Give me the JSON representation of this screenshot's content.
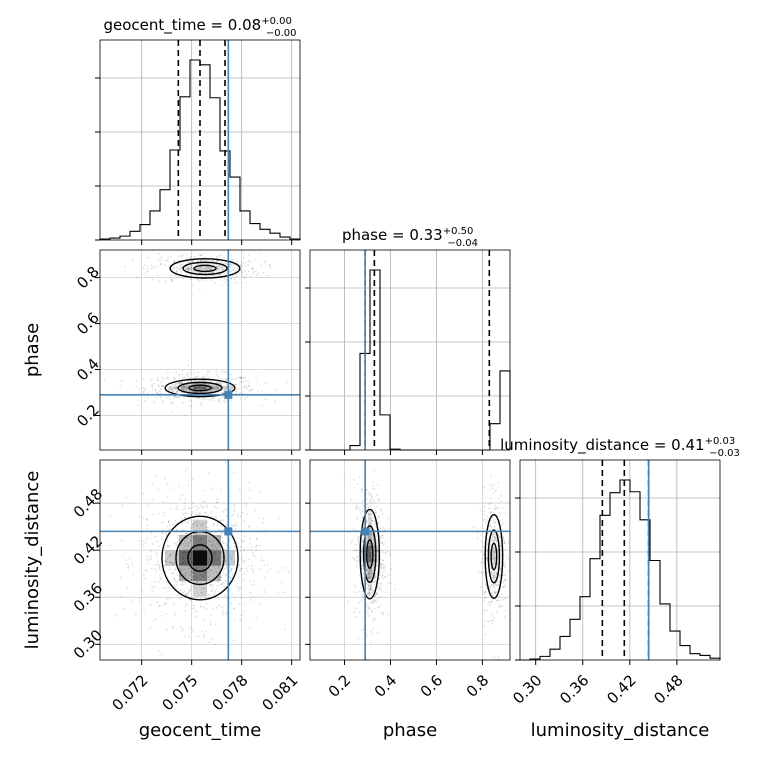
{
  "chart_data": {
    "type": "corner",
    "parameters": [
      "geocent_time",
      "phase",
      "luminosity_distance"
    ],
    "truth_color": "#4682b4",
    "truths": {
      "geocent_time": 0.0772,
      "phase": 0.29,
      "luminosity_distance": 0.444
    },
    "diagonal": [
      {
        "parameter": "geocent_time",
        "title": {
          "prefix": "geocent_time = 0.08",
          "sup": "+0.00",
          "sub": "−0.00"
        },
        "range": [
          0.0695,
          0.0815
        ],
        "ticks": [
          0.072,
          0.075,
          0.078,
          0.081
        ],
        "tick_labels": [
          "0.072",
          "0.075",
          "0.078",
          "0.081"
        ],
        "quantiles": [
          0.0742,
          0.0755,
          0.077
        ],
        "bins": [
          0.0695,
          0.0701,
          0.0707,
          0.0713,
          0.0719,
          0.0725,
          0.0731,
          0.0737,
          0.0743,
          0.0749,
          0.0755,
          0.0761,
          0.0767,
          0.0773,
          0.0779,
          0.0785,
          0.0791,
          0.0797,
          0.0803,
          0.0809,
          0.0815
        ],
        "counts": [
          1,
          2,
          4,
          9,
          16,
          30,
          52,
          93,
          148,
          186,
          181,
          147,
          92,
          65,
          30,
          17,
          11,
          7,
          3,
          1
        ]
      },
      {
        "parameter": "phase",
        "title": {
          "prefix": "phase = 0.33",
          "sup": "+0.50",
          "sub": "−0.04"
        },
        "range": [
          0.05,
          0.92
        ],
        "ticks": [
          0.2,
          0.4,
          0.6,
          0.8
        ],
        "tick_labels": [
          "0.2",
          "0.4",
          "0.6",
          "0.8"
        ],
        "quantiles": [
          0.29,
          0.33,
          0.83
        ],
        "bins": [
          0.05,
          0.0935,
          0.137,
          0.1805,
          0.224,
          0.2675,
          0.311,
          0.3545,
          0.398,
          0.4415,
          0.485,
          0.5285,
          0.572,
          0.6155,
          0.659,
          0.7025,
          0.746,
          0.7895,
          0.833,
          0.8765,
          0.92
        ],
        "counts": [
          0,
          0,
          0,
          0,
          5,
          110,
          205,
          40,
          1,
          0,
          0,
          0,
          0,
          0,
          0,
          0,
          0,
          0,
          30,
          90
        ]
      },
      {
        "parameter": "luminosity_distance",
        "title": {
          "prefix": "luminosity_distance = 0.41",
          "sup": "+0.03",
          "sub": "−0.03"
        },
        "range": [
          0.28,
          0.535
        ],
        "ticks": [
          0.3,
          0.36,
          0.42,
          0.48
        ],
        "tick_labels": [
          "0.30",
          "0.36",
          "0.42",
          "0.48"
        ],
        "quantiles": [
          0.385,
          0.413,
          0.444
        ],
        "bins": [
          0.28,
          0.29275,
          0.3055,
          0.31825,
          0.331,
          0.34375,
          0.3565,
          0.36925,
          0.382,
          0.39475,
          0.4075,
          0.42025,
          0.433,
          0.44575,
          0.4585,
          0.47125,
          0.484,
          0.49675,
          0.5095,
          0.52225,
          0.535
        ],
        "counts": [
          0,
          1,
          4,
          12,
          26,
          45,
          70,
          112,
          160,
          185,
          199,
          186,
          155,
          110,
          62,
          32,
          16,
          7,
          5,
          2
        ]
      }
    ],
    "off_diagonal": [
      {
        "x": "geocent_time",
        "y": "phase",
        "blobs": [
          {
            "cx": 0.0755,
            "cy": 0.32,
            "sx": 0.0011,
            "sy": 0.02,
            "w": 0.6
          },
          {
            "cx": 0.0758,
            "cy": 0.84,
            "sx": 0.0011,
            "sy": 0.022,
            "w": 0.4
          }
        ]
      },
      {
        "x": "geocent_time",
        "y": "luminosity_distance",
        "blobs": [
          {
            "cx": 0.0755,
            "cy": 0.41,
            "sx": 0.0012,
            "sy": 0.028,
            "w": 1.0
          }
        ]
      },
      {
        "x": "phase",
        "y": "luminosity_distance",
        "blobs": [
          {
            "cx": 0.31,
            "cy": 0.415,
            "sx": 0.022,
            "sy": 0.03,
            "w": 0.62
          },
          {
            "cx": 0.85,
            "cy": 0.412,
            "sx": 0.02,
            "sy": 0.028,
            "w": 0.38
          }
        ]
      }
    ],
    "axis_labels": {
      "x": [
        "geocent_time",
        "phase",
        "luminosity_distance"
      ],
      "y": [
        "phase",
        "luminosity_distance"
      ]
    },
    "y_ticks": {
      "phase": {
        "values": [
          0.2,
          0.4,
          0.6,
          0.8
        ],
        "labels": [
          "0.2",
          "0.4",
          "0.6",
          "0.8"
        ],
        "range": [
          0.05,
          0.92
        ]
      },
      "luminosity_distance": {
        "values": [
          0.3,
          0.36,
          0.42,
          0.48
        ],
        "labels": [
          "0.30",
          "0.36",
          "0.42",
          "0.48"
        ],
        "range": [
          0.28,
          0.535
        ]
      }
    },
    "grid": true
  }
}
